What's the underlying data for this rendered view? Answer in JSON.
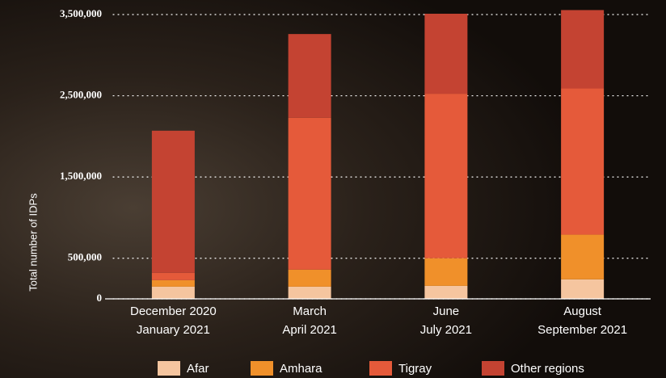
{
  "chart_data": {
    "type": "stacked-bar",
    "y_label": "Total number of IDPs",
    "categories": [
      [
        "December 2020",
        "January 2021"
      ],
      [
        "March",
        "April 2021"
      ],
      [
        "June",
        "July 2021"
      ],
      [
        "August",
        "September 2021"
      ]
    ],
    "series": [
      {
        "name": "Afar",
        "color": "#f5c59f",
        "values": [
          150000,
          150000,
          160000,
          240000
        ]
      },
      {
        "name": "Amhara",
        "color": "#f0902a",
        "values": [
          80000,
          210000,
          340000,
          550000
        ]
      },
      {
        "name": "Tigray",
        "color": "#e55a3a",
        "values": [
          90000,
          1870000,
          2025000,
          1800000
        ]
      },
      {
        "name": "Other regions",
        "color": "#c44332",
        "values": [
          1750000,
          1030000,
          985000,
          965000
        ]
      }
    ],
    "ylim": [
      0,
      3500000
    ],
    "yticks": [
      0,
      {
        "value": 500000,
        "label": "500,000"
      },
      {
        "value": 1500000,
        "label": "1,500,000"
      },
      {
        "value": 2500000,
        "label": "2,500,000"
      },
      {
        "value": 3500000,
        "label": "3,500,000"
      }
    ],
    "grid": true
  }
}
